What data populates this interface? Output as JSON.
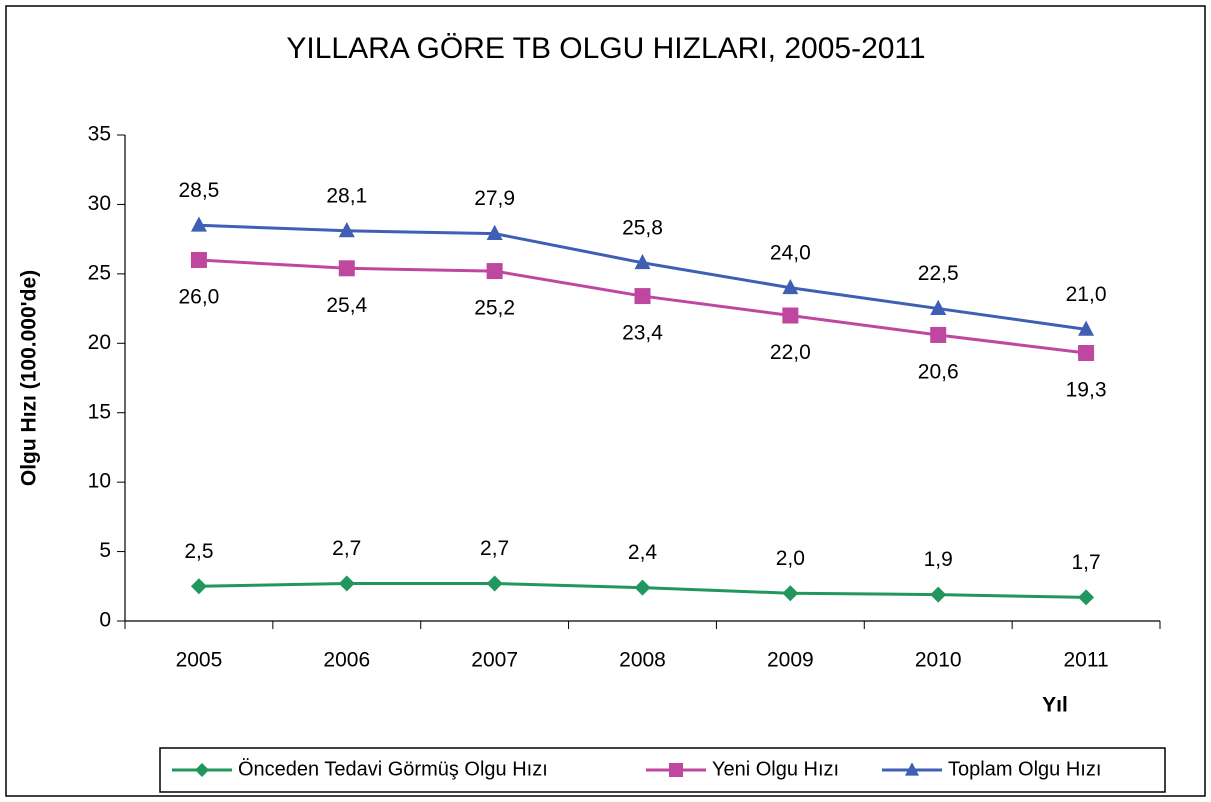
{
  "chart_data": {
    "type": "line",
    "title": "YILLARA GÖRE TB OLGU HIZLARI, 2005-2011",
    "xlabel": "Yıl",
    "ylabel": "Olgu Hızı (100.000'de)",
    "categories": [
      "2005",
      "2006",
      "2007",
      "2008",
      "2009",
      "2010",
      "2011"
    ],
    "ylim": [
      0,
      35
    ],
    "yticks": [
      0,
      5,
      10,
      15,
      20,
      25,
      30,
      35
    ],
    "grid": false,
    "legend": "bottom",
    "series": [
      {
        "name": "Önceden Tedavi Görmüş Olgu Hızı",
        "color": "#22975d",
        "marker": "diamond",
        "label_position": "above",
        "values": [
          2.5,
          2.7,
          2.7,
          2.4,
          2.0,
          1.9,
          1.7
        ],
        "value_labels": [
          "2,5",
          "2,7",
          "2,7",
          "2,4",
          "2,0",
          "1,9",
          "1,7"
        ]
      },
      {
        "name": "Yeni Olgu Hızı",
        "color": "#c0479f",
        "marker": "square",
        "label_position": "below",
        "values": [
          26.0,
          25.4,
          25.2,
          23.4,
          22.0,
          20.6,
          19.3
        ],
        "value_labels": [
          "26,0",
          "25,4",
          "25,2",
          "23,4",
          "22,0",
          "20,6",
          "19,3"
        ]
      },
      {
        "name": "Toplam Olgu Hızı",
        "color": "#3f5fb5",
        "marker": "triangle",
        "label_position": "above",
        "values": [
          28.5,
          28.1,
          27.9,
          25.8,
          24.0,
          22.5,
          21.0
        ],
        "value_labels": [
          "28,5",
          "28,1",
          "27,9",
          "25,8",
          "24,0",
          "22,5",
          "21,0"
        ]
      }
    ]
  }
}
